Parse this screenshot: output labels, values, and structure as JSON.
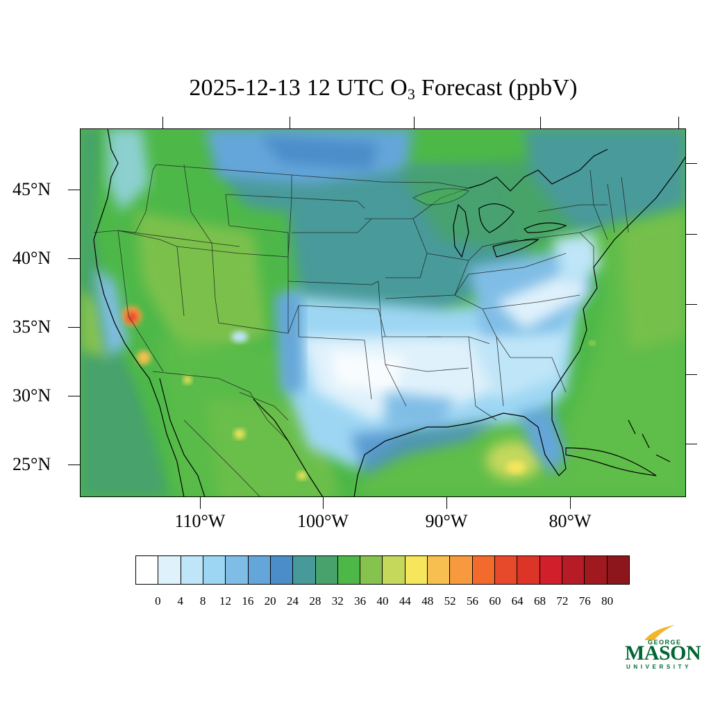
{
  "title": {
    "prefix": "2025-12-13 12 UTC O",
    "subscript": "3",
    "suffix": " Forecast (ppbV)"
  },
  "map": {
    "region": "Contiguous United States",
    "lat_labels": [
      "45°N",
      "40°N",
      "35°N",
      "30°N",
      "25°N"
    ],
    "lon_labels": [
      "110°W",
      "100°W",
      "90°W",
      "80°W"
    ]
  },
  "colorbar": {
    "colors": [
      "#ffffff",
      "#dff1fb",
      "#bfe5f8",
      "#9dd6f3",
      "#80bde6",
      "#65a6da",
      "#4b8dc9",
      "#489a9a",
      "#47a26c",
      "#4db848",
      "#85c24e",
      "#c5d85c",
      "#f5e65c",
      "#f7bf4f",
      "#f79a3f",
      "#f26b2c",
      "#e64a2a",
      "#dc3528",
      "#d11f2b",
      "#b71b25",
      "#a0191f",
      "#8c161b"
    ],
    "labels": [
      "0",
      "4",
      "8",
      "12",
      "16",
      "20",
      "24",
      "28",
      "32",
      "36",
      "40",
      "44",
      "48",
      "52",
      "56",
      "60",
      "64",
      "68",
      "72",
      "76",
      "80"
    ]
  },
  "logo": {
    "top": "GEORGE",
    "main": "MASON",
    "bottom": "UNIVERSITY"
  }
}
